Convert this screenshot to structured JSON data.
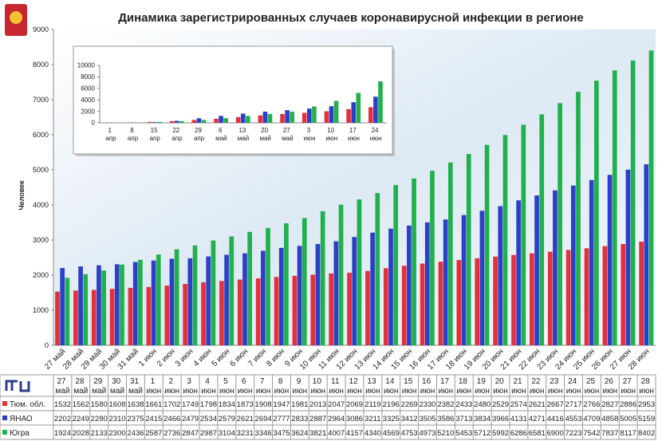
{
  "chart_data": [
    {
      "type": "bar",
      "title": "Динамика зарегистрированных случаев коронавирусной инфекции  в регионе",
      "ylabel": "Человек",
      "categories": [
        "27 май",
        "28 май",
        "29 май",
        "30 май",
        "31 май",
        "1 июн",
        "2 июн",
        "3 июн",
        "4 июн",
        "5 июн",
        "6 июн",
        "7 июн",
        "8 июн",
        "9 июн",
        "10 июн",
        "11 июн",
        "12 июн",
        "13 июн",
        "14 июн",
        "15 июн",
        "16 июн",
        "17 июн",
        "18 июн",
        "19 июн",
        "20 июн",
        "21 июн",
        "22 июн",
        "23 июн",
        "24 июн",
        "25 июн",
        "26 июн",
        "27 июн",
        "28 июн"
      ],
      "series": [
        {
          "name": "Тюм. обл.",
          "color": "#e3303b",
          "values": [
            1532,
            1562,
            1580,
            1608,
            1638,
            1661,
            1702,
            1749,
            1798,
            1834,
            1873,
            1908,
            1947,
            1981,
            2013,
            2047,
            2069,
            2119,
            2196,
            2269,
            2330,
            2382,
            2433,
            2480,
            2529,
            2574,
            2621,
            2667,
            2717,
            2766,
            2827,
            2886,
            2953
          ]
        },
        {
          "name": "ЯНАО",
          "color": "#2b3fc9",
          "values": [
            2202,
            2249,
            2280,
            2310,
            2375,
            2415,
            2466,
            2479,
            2534,
            2579,
            2621,
            2694,
            2777,
            2833,
            2887,
            2964,
            3086,
            3211,
            3325,
            3412,
            3505,
            3586,
            3713,
            3834,
            3966,
            4131,
            4271,
            4416,
            4553,
            4709,
            4858,
            5005,
            5159
          ]
        },
        {
          "name": "Югра",
          "color": "#20b04d",
          "values": [
            1924,
            2028,
            2133,
            2300,
            2436,
            2587,
            2736,
            2847,
            2987,
            3104,
            3231,
            3346,
            3475,
            3624,
            3821,
            4007,
            4157,
            4340,
            4569,
            4753,
            4973,
            5210,
            5453,
            5712,
            5992,
            6286,
            6581,
            6900,
            7223,
            7542,
            7837,
            8117,
            8402
          ]
        }
      ],
      "ylim": [
        0,
        9000
      ],
      "yticks": [
        0,
        1000,
        2000,
        3000,
        4000,
        5000,
        6000,
        7000,
        8000,
        9000
      ]
    },
    {
      "type": "bar",
      "categories": [
        "1 апр",
        "8 апр",
        "15 апр",
        "22 апр",
        "29 апр",
        "6 май",
        "13 май",
        "20 май",
        "27 май",
        "3 июн",
        "10 июн",
        "17 июн",
        "24 июн"
      ],
      "series": [
        {
          "color": "#e3303b",
          "values": [
            10,
            50,
            150,
            300,
            500,
            700,
            1000,
            1300,
            1532,
            1749,
            2013,
            2382,
            2717
          ]
        },
        {
          "color": "#2b3fc9",
          "values": [
            5,
            40,
            120,
            350,
            800,
            1200,
            1600,
            1950,
            2202,
            2479,
            2887,
            3586,
            4553
          ]
        },
        {
          "color": "#20b04d",
          "values": [
            10,
            60,
            150,
            300,
            500,
            800,
            1200,
            1550,
            1924,
            2847,
            3821,
            5210,
            7223
          ]
        }
      ],
      "ylim": [
        0,
        10000
      ],
      "yticks": [
        0,
        2000,
        4000,
        6000,
        8000,
        10000
      ]
    }
  ]
}
